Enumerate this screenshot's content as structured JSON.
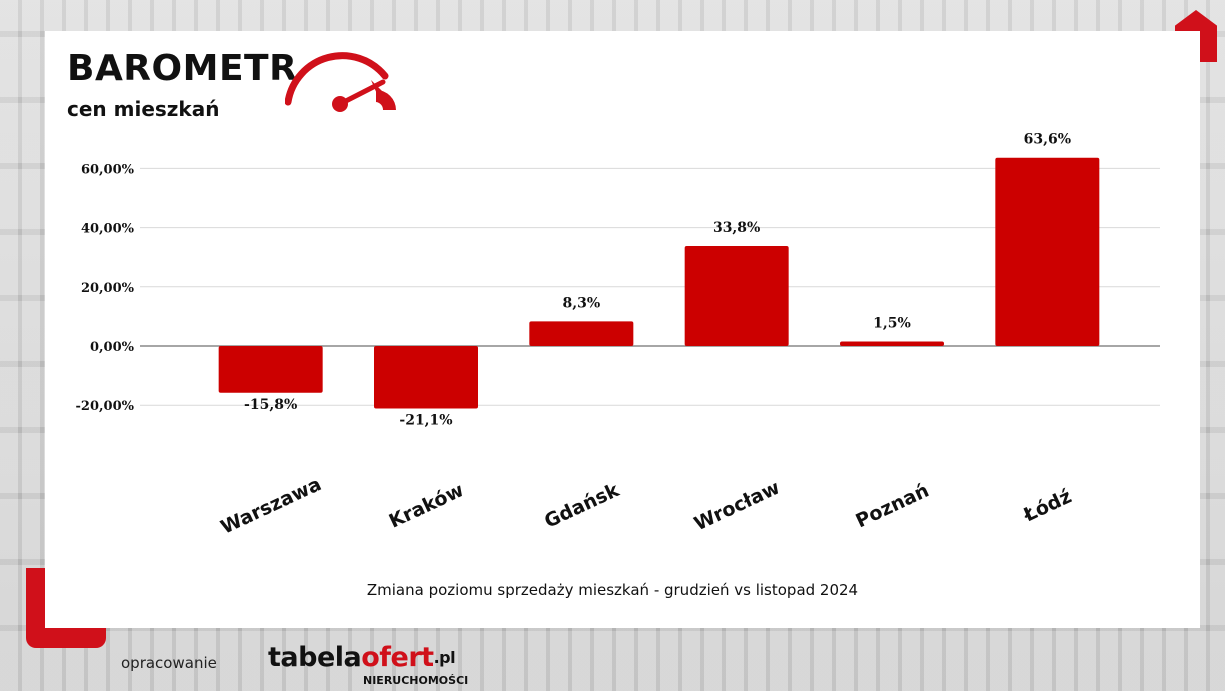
{
  "header": {
    "title": "BAROMETR",
    "subtitle": "cen mieszkań"
  },
  "colors": {
    "accent": "#cc0000",
    "brand_red": "#d0101a",
    "grid": "#d9d9d9"
  },
  "chart_data": {
    "type": "bar",
    "categories": [
      "Warszawa",
      "Kraków",
      "Gdańsk",
      "Wrocław",
      "Poznań",
      "Łódź"
    ],
    "values": [
      -15.8,
      -21.1,
      8.3,
      33.8,
      1.5,
      63.6
    ],
    "data_labels": [
      "-15,8%",
      "-21,1%",
      "8,3%",
      "33,8%",
      "1,5%",
      "63,6%"
    ],
    "y_ticks": [
      60,
      40,
      20,
      0,
      -20
    ],
    "y_tick_labels": [
      "60,00%",
      "40,00%",
      "20,00%",
      "0,00%",
      "-20,00%"
    ],
    "ylim": [
      -21.1,
      63.6
    ],
    "grid": true,
    "legend": "none",
    "bar_color": "#cc0000"
  },
  "caption": "Zmiana poziomu sprzedaży mieszkań - grudzień vs listopad  2024",
  "footer": {
    "label": "opracowanie",
    "logo_part1": "tabela",
    "logo_part2": "ofert",
    "logo_tld": ".pl",
    "logo_sub": "NIERUCHOMOŚCI"
  }
}
